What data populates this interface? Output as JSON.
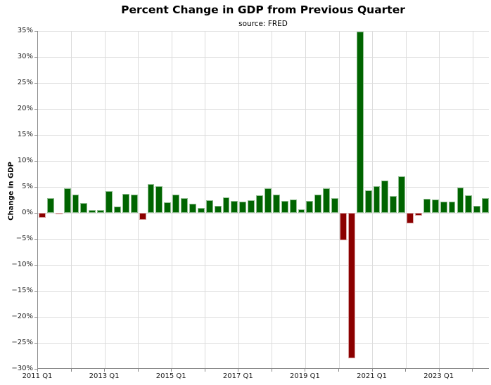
{
  "header": {
    "title": "Percent Change in GDP from Previous Quarter",
    "subtitle": "source: FRED"
  },
  "chart_data": {
    "type": "bar",
    "title": "Percent Change in GDP from Previous Quarter",
    "subtitle": "source: FRED",
    "xlabel": "",
    "ylabel": "Change in GDP",
    "ylim": [
      -30,
      35
    ],
    "grid": true,
    "legend": "none",
    "bar_color_positive": "#006400",
    "bar_color_negative": "#8b0000",
    "bar_edge_positive": "#8fbc8f",
    "bar_edge_negative": "#d8a4a4",
    "ytick_values": [
      35,
      30,
      25,
      20,
      15,
      10,
      5,
      0,
      -5,
      -10,
      -15,
      -20,
      -25,
      -30
    ],
    "ytick_labels": [
      "35%",
      "30%",
      "25%",
      "20%",
      "15%",
      "10%",
      "5%",
      "0%",
      "−5%",
      "−10%",
      "−15%",
      "−20%",
      "−25%",
      "−30%"
    ],
    "x_years": [
      "2011",
      "2012",
      "2013",
      "2014",
      "2015",
      "2016",
      "2017",
      "2018",
      "2019",
      "2020",
      "2021",
      "2022",
      "2023",
      "2024"
    ],
    "xtick_labels": [
      {
        "label": "2011 Q1",
        "year_index": 0
      },
      {
        "label": "2013 Q1",
        "year_index": 2
      },
      {
        "label": "2015 Q1",
        "year_index": 4
      },
      {
        "label": "2017 Q1",
        "year_index": 6
      },
      {
        "label": "2019 Q1",
        "year_index": 8
      },
      {
        "label": "2021 Q1",
        "year_index": 10
      },
      {
        "label": "2023 Q1",
        "year_index": 12
      }
    ],
    "quarters": [
      "2011 Q1",
      "2011 Q2",
      "2011 Q3",
      "2011 Q4",
      "2012 Q1",
      "2012 Q2",
      "2012 Q3",
      "2012 Q4",
      "2013 Q1",
      "2013 Q2",
      "2013 Q3",
      "2013 Q4",
      "2014 Q1",
      "2014 Q2",
      "2014 Q3",
      "2014 Q4",
      "2015 Q1",
      "2015 Q2",
      "2015 Q3",
      "2015 Q4",
      "2016 Q1",
      "2016 Q2",
      "2016 Q3",
      "2016 Q4",
      "2017 Q1",
      "2017 Q2",
      "2017 Q3",
      "2017 Q4",
      "2018 Q1",
      "2018 Q2",
      "2018 Q3",
      "2018 Q4",
      "2019 Q1",
      "2019 Q2",
      "2019 Q3",
      "2019 Q4",
      "2020 Q1",
      "2020 Q2",
      "2020 Q3",
      "2020 Q4",
      "2021 Q1",
      "2021 Q2",
      "2021 Q3",
      "2021 Q4",
      "2022 Q1",
      "2022 Q2",
      "2022 Q3",
      "2022 Q4",
      "2023 Q1",
      "2023 Q2",
      "2023 Q3",
      "2023 Q4",
      "2024 Q1",
      "2024 Q2"
    ],
    "values": [
      -1.0,
      2.9,
      -0.1,
      4.7,
      3.5,
      1.9,
      0.6,
      0.5,
      4.2,
      1.2,
      3.6,
      3.5,
      -1.4,
      5.5,
      5.1,
      2.0,
      3.5,
      2.9,
      1.8,
      0.9,
      2.4,
      1.3,
      3.0,
      2.3,
      2.1,
      2.4,
      3.4,
      4.7,
      3.5,
      2.3,
      2.6,
      0.7,
      2.3,
      3.5,
      4.7,
      2.8,
      -5.3,
      -28.0,
      34.8,
      4.3,
      5.2,
      6.2,
      3.3,
      7.0,
      -2.0,
      -0.6,
      2.7,
      2.6,
      2.2,
      2.1,
      4.9,
      3.4,
      1.4,
      2.8
    ]
  }
}
